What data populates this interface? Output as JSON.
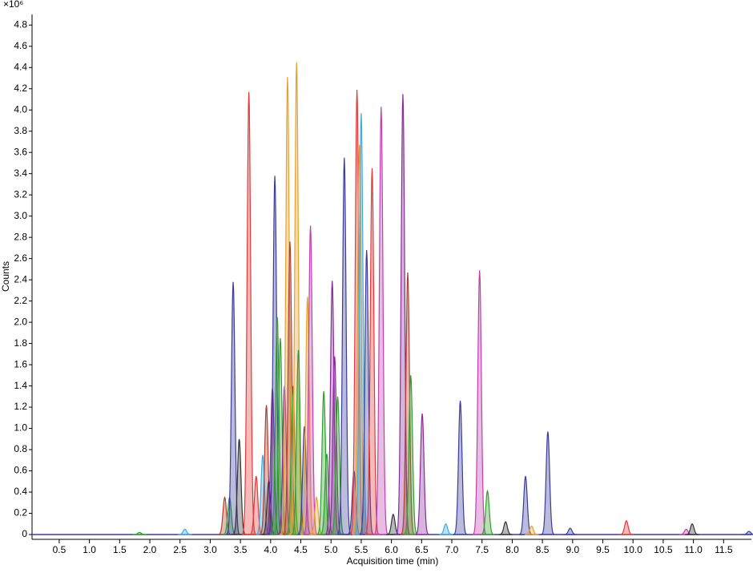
{
  "chart_data": {
    "type": "chromatogram",
    "y_multiplier": "×10⁶",
    "ylabel": "Counts",
    "xlabel": "Acquisition time (min)",
    "xlim": [
      0.05,
      11.96
    ],
    "ylim": [
      0,
      4.87
    ],
    "xticks": [
      0.5,
      {
        "value": 1,
        "label": "1.0"
      },
      1.5,
      {
        "value": 2,
        "label": "2.0"
      },
      2.5,
      {
        "value": 3,
        "label": "3.0"
      },
      3.5,
      {
        "value": 4,
        "label": "4.0"
      },
      4.5,
      {
        "value": 5,
        "label": "5.0"
      },
      5.5,
      {
        "value": 6,
        "label": "6.0"
      },
      6.5,
      {
        "value": 7,
        "label": "7.0"
      },
      7.5,
      {
        "value": 8,
        "label": "8.0"
      },
      8.5,
      {
        "value": 9,
        "label": "9.0"
      },
      9.5,
      {
        "value": 10,
        "label": "10.0"
      },
      10.5,
      {
        "value": 11,
        "label": "11.0"
      },
      11.5
    ],
    "yticks": [
      0,
      0.2,
      0.4,
      0.6,
      0.8,
      {
        "value": 1,
        "label": "1.0"
      },
      1.2,
      1.4,
      1.6,
      1.8,
      {
        "value": 2,
        "label": "2.0"
      },
      2.2,
      2.4,
      2.6,
      2.8,
      {
        "value": 3,
        "label": "3.0"
      },
      3.2,
      3.4,
      3.6,
      3.8,
      {
        "value": 4,
        "label": "4.0"
      },
      4.2,
      4.4,
      4.6,
      4.8
    ],
    "x": [
      1.83,
      2.58,
      3.24,
      3.32,
      3.38,
      3.48,
      3.64,
      3.76,
      3.87,
      3.93,
      3.97,
      4.03,
      4.07,
      4.11,
      4.16,
      4.23,
      4.28,
      4.32,
      4.37,
      4.43,
      4.46,
      4.56,
      4.61,
      4.66,
      4.76,
      4.88,
      4.93,
      5.02,
      5.06,
      5.11,
      5.22,
      5.38,
      5.43,
      5.47,
      5.5,
      5.59,
      5.68,
      5.83,
      6.03,
      6.19,
      6.27,
      6.32,
      6.51,
      6.9,
      7.14,
      7.46,
      7.59,
      7.89,
      8.22,
      8.32,
      8.59,
      8.96,
      9.89,
      10.88,
      10.98,
      11.92
    ],
    "values": [
      0.02,
      0.05,
      0.35,
      0.35,
      2.38,
      0.9,
      4.17,
      0.55,
      0.75,
      1.22,
      0.5,
      1.38,
      3.38,
      2.05,
      1.85,
      1.4,
      4.31,
      2.76,
      1.4,
      4.45,
      1.74,
      1.02,
      2.24,
      2.91,
      0.35,
      1.35,
      0.76,
      2.39,
      1.68,
      1.3,
      3.55,
      0.6,
      4.19,
      3.67,
      3.97,
      2.68,
      3.45,
      4.03,
      0.19,
      4.15,
      2.47,
      1.5,
      1.14,
      0.1,
      1.26,
      2.49,
      0.41,
      0.12,
      0.55,
      0.08,
      0.97,
      0.06,
      0.13,
      0.05,
      0.1,
      0.03
    ],
    "colors": [
      "#30a030",
      "#40a8e0",
      "#b04030",
      "#30a030",
      "#3c3c9c",
      "#333333",
      "#e23a3a",
      "#e23a3a",
      "#40a8e0",
      "#b04030",
      "#333333",
      "#8a2a9a",
      "#3c3c9c",
      "#30a030",
      "#30a030",
      "#8a2a9a",
      "#e8a030",
      "#b04030",
      "#30a030",
      "#e8a030",
      "#30a030",
      "#3c3c9c",
      "#e8a030",
      "#c040b0",
      "#e8a030",
      "#30a030",
      "#30a030",
      "#8a2a9a",
      "#8a2a9a",
      "#30a030",
      "#3c3c9c",
      "#3c3c9c",
      "#e23a3a",
      "#e8a030",
      "#40a8e0",
      "#3c3c9c",
      "#e23a3a",
      "#c040b0",
      "#333333",
      "#8a2a9a",
      "#b04030",
      "#30a030",
      "#8a2a9a",
      "#40a8e0",
      "#3c3c9c",
      "#c040b0",
      "#30a030",
      "#333333",
      "#3c3c9c",
      "#e8a030",
      "#3c3c9c",
      "#3c3c9c",
      "#e23a3a",
      "#c040b0",
      "#333333",
      "#3c3c9c"
    ]
  }
}
